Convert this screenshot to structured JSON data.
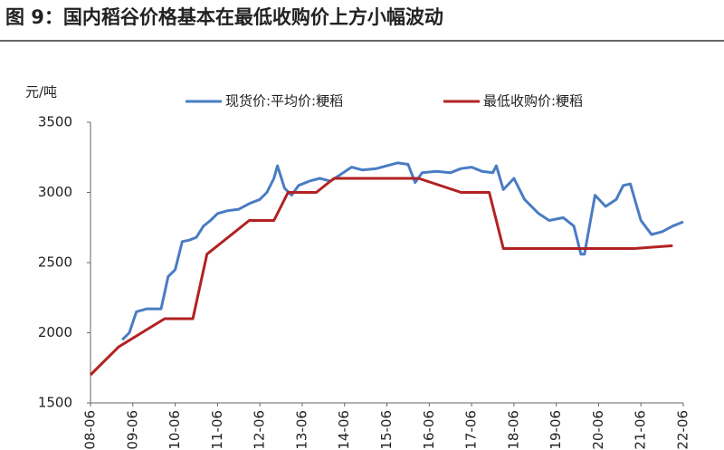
{
  "chart_data": {
    "type": "line",
    "title": "图 9：国内稻谷价格基本在最低收购价上方小幅波动",
    "y_label": "元/吨",
    "xlim": [
      "2008-06",
      "2022-06"
    ],
    "xticks": [
      "2008-06",
      "2009-06",
      "2010-06",
      "2011-06",
      "2012-06",
      "2013-06",
      "2014-06",
      "2015-06",
      "2016-06",
      "2017-06",
      "2018-06",
      "2019-06",
      "2020-06",
      "2021-06",
      "2022-06"
    ],
    "ylim": [
      1500,
      3500
    ],
    "yticks": [
      1500,
      2000,
      2500,
      3000,
      3500
    ],
    "series": [
      {
        "name": "现货价:平均价:粳稻",
        "color": "#4a7cc4",
        "x": [
          "2009-03",
          "2009-05",
          "2009-07",
          "2009-10",
          "2010-02",
          "2010-04",
          "2010-06",
          "2010-08",
          "2010-10",
          "2010-12",
          "2011-02",
          "2011-04",
          "2011-06",
          "2011-09",
          "2011-12",
          "2012-03",
          "2012-06",
          "2012-08",
          "2012-10",
          "2012-11",
          "2013-01",
          "2013-03",
          "2013-05",
          "2013-08",
          "2013-11",
          "2014-02",
          "2014-05",
          "2014-08",
          "2014-11",
          "2015-03",
          "2015-06",
          "2015-09",
          "2015-12",
          "2016-02",
          "2016-04",
          "2016-08",
          "2016-12",
          "2017-03",
          "2017-06",
          "2017-09",
          "2017-12",
          "2018-01",
          "2018-03",
          "2018-06",
          "2018-09",
          "2019-01",
          "2019-04",
          "2019-08",
          "2019-11",
          "2020-01",
          "2020-02",
          "2020-05",
          "2020-08",
          "2020-11",
          "2021-01",
          "2021-03",
          "2021-06",
          "2021-09",
          "2021-12",
          "2022-03",
          "2022-06"
        ],
        "values": [
          1950,
          2000,
          2150,
          2170,
          2170,
          2400,
          2450,
          2650,
          2660,
          2680,
          2760,
          2800,
          2850,
          2870,
          2880,
          2920,
          2950,
          3000,
          3100,
          3190,
          3030,
          2980,
          3050,
          3080,
          3100,
          3080,
          3130,
          3180,
          3160,
          3170,
          3190,
          3210,
          3200,
          3070,
          3140,
          3150,
          3140,
          3170,
          3180,
          3150,
          3140,
          3190,
          3020,
          3100,
          2950,
          2850,
          2800,
          2820,
          2760,
          2560,
          2560,
          2980,
          2900,
          2950,
          3050,
          3060,
          2800,
          2700,
          2720,
          2760,
          2790
        ]
      },
      {
        "name": "最低收购价:粳稻",
        "color": "#b22222",
        "x": [
          "2008-06",
          "2009-02",
          "2010-03",
          "2010-11",
          "2011-03",
          "2012-03",
          "2012-10",
          "2013-02",
          "2013-10",
          "2014-03",
          "2016-03",
          "2017-03",
          "2017-11",
          "2018-03",
          "2021-04",
          "2022-03"
        ],
        "values": [
          1700,
          1900,
          2100,
          2100,
          2560,
          2800,
          2800,
          3000,
          3000,
          3100,
          3100,
          3000,
          3000,
          2600,
          2600,
          2620
        ]
      }
    ]
  }
}
